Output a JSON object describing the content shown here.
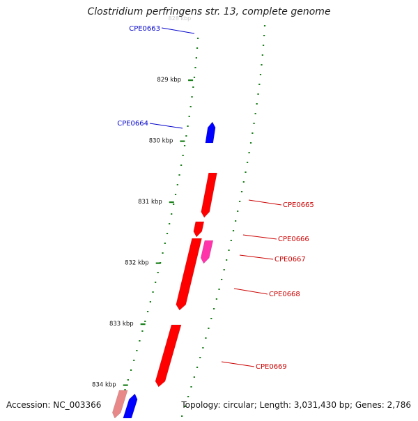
{
  "header": {
    "title": "Clostridium perfringens str. 13, complete genome"
  },
  "footer": {
    "accession": "Accession: NC_003366",
    "summary": "Topology: circular; Length: 3,031,430 bp; Genes: 2,786"
  },
  "ticks": [
    {
      "label": "829 kbp",
      "kbp": 829
    },
    {
      "label": "830 kbp",
      "kbp": 830
    },
    {
      "label": "831 kbp",
      "kbp": 831
    },
    {
      "label": "832 kbp",
      "kbp": 832
    },
    {
      "label": "833 kbp",
      "kbp": 833
    },
    {
      "label": "834 kbp",
      "kbp": 834
    }
  ],
  "faded_tick_label": "828 kbp",
  "genes": [
    {
      "label": "CPE0663",
      "strand": "plus",
      "color": "#0000cc"
    },
    {
      "label": "CPE0664",
      "strand": "plus",
      "color": "#0000cc"
    },
    {
      "label": "CPE0665",
      "strand": "minus",
      "color": "#cc0000"
    },
    {
      "label": "CPE0666",
      "strand": "minus",
      "color": "#cc0000"
    },
    {
      "label": "CPE0667",
      "strand": "minus",
      "color": "#cc0000"
    },
    {
      "label": "CPE0668",
      "strand": "minus",
      "color": "#cc0000"
    },
    {
      "label": "CPE0669",
      "strand": "minus",
      "color": "#cc0000"
    }
  ],
  "colors": {
    "plus_cds": "#0000ff",
    "plus_rna": "#22c8c8",
    "minus_cds": "#ff0000",
    "minus_alt": "#ff33aa",
    "minus_faint": "#e88888",
    "backbone": "#888888",
    "ticks": "#1a7f1a"
  }
}
